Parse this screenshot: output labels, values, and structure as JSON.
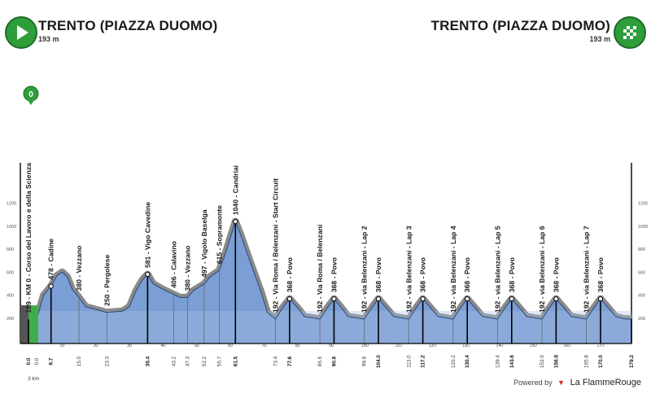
{
  "header": {
    "start_name": "TRENTO (PIAZZA DUOMO)",
    "start_alt": "193 m",
    "finish_name": "TRENTO (PIAZZA DUOMO)",
    "finish_alt": "193 m"
  },
  "colors": {
    "start_badge": "#2e9e3b",
    "finish_badge": "#2e9e3b",
    "profile_fill": "#7b9fd4",
    "climb_band": "#8a8a8a"
  },
  "icons": {
    "start": "play-icon",
    "finish": "checkered-flag-icon",
    "km0_marker": "km-zero-pin-icon"
  },
  "km0_marker_text": "0",
  "scale_note": "3 km",
  "footer": {
    "powered": "Powered by",
    "brand": "La FlammeRouge"
  },
  "chart_data": {
    "type": "area",
    "y_ticks": [
      "200",
      "400",
      "600",
      "800",
      "1000",
      "1200"
    ],
    "x_ticks": [
      "10",
      "20",
      "30",
      "40",
      "50",
      "60",
      "70",
      "80",
      "90",
      "100",
      "110",
      "120",
      "130",
      "140",
      "150",
      "160",
      "170"
    ],
    "x_range": [
      0,
      179.2
    ],
    "profile": [
      [
        0,
        189
      ],
      [
        2.5,
        200
      ],
      [
        4.5,
        400
      ],
      [
        6.7,
        478
      ],
      [
        8.5,
        570
      ],
      [
        10,
        600
      ],
      [
        11.5,
        560
      ],
      [
        13,
        450
      ],
      [
        15,
        380
      ],
      [
        17,
        300
      ],
      [
        23.3,
        250
      ],
      [
        28,
        262
      ],
      [
        30,
        300
      ],
      [
        32,
        440
      ],
      [
        34,
        540
      ],
      [
        35.4,
        581
      ],
      [
        37,
        500
      ],
      [
        40,
        450
      ],
      [
        43.2,
        406
      ],
      [
        45,
        380
      ],
      [
        47.3,
        380
      ],
      [
        49,
        440
      ],
      [
        52.2,
        497
      ],
      [
        54,
        560
      ],
      [
        56.7,
        615
      ],
      [
        58.5,
        760
      ],
      [
        60.5,
        950
      ],
      [
        61.5,
        1040
      ],
      [
        63,
        930
      ],
      [
        66,
        680
      ],
      [
        69,
        440
      ],
      [
        71,
        250
      ],
      [
        73.4,
        192
      ],
      [
        75.5,
        290
      ],
      [
        77.6,
        368
      ],
      [
        80,
        290
      ],
      [
        82,
        215
      ],
      [
        86.6,
        192
      ],
      [
        88.8,
        290
      ],
      [
        90.8,
        368
      ],
      [
        93,
        290
      ],
      [
        95,
        215
      ],
      [
        99.8,
        192
      ],
      [
        102,
        290
      ],
      [
        104.0,
        368
      ],
      [
        106.3,
        290
      ],
      [
        108.5,
        215
      ],
      [
        113.0,
        192
      ],
      [
        115.2,
        290
      ],
      [
        117.2,
        368
      ],
      [
        119.5,
        290
      ],
      [
        121.7,
        215
      ],
      [
        126.2,
        192
      ],
      [
        128.4,
        290
      ],
      [
        130.4,
        368
      ],
      [
        132.7,
        290
      ],
      [
        134.9,
        215
      ],
      [
        139.4,
        192
      ],
      [
        141.6,
        290
      ],
      [
        143.6,
        368
      ],
      [
        145.9,
        290
      ],
      [
        148.1,
        215
      ],
      [
        152.6,
        192
      ],
      [
        154.8,
        290
      ],
      [
        156.8,
        368
      ],
      [
        159.1,
        290
      ],
      [
        161.3,
        215
      ],
      [
        165.8,
        192
      ],
      [
        168,
        290
      ],
      [
        170.0,
        368
      ],
      [
        172.3,
        290
      ],
      [
        174.5,
        215
      ],
      [
        177,
        195
      ],
      [
        179.2,
        193
      ]
    ],
    "waypoints": [
      {
        "km": 0.0,
        "km_label": "0.0",
        "label": "189 - KM 0 - Corso del Lavoro e della Scienza",
        "bold": true
      },
      {
        "km": 6.7,
        "km_label": "6.7",
        "label": "478 - Cadine",
        "bold": true
      },
      {
        "km": 15.0,
        "km_label": "15.0",
        "label": "380 - Vezzano",
        "bold": false
      },
      {
        "km": 23.3,
        "km_label": "23.3",
        "label": "250 - Pergolese",
        "bold": false
      },
      {
        "km": 35.4,
        "km_label": "35.4",
        "label": "581 - Vigo Cavedine",
        "bold": true
      },
      {
        "km": 43.2,
        "km_label": "43.2",
        "label": "406 - Calavino",
        "bold": false
      },
      {
        "km": 47.3,
        "km_label": "47.3",
        "label": "380 - Vezzano",
        "bold": false
      },
      {
        "km": 52.2,
        "km_label": "52.2",
        "label": "497 - Vigolo Baselga",
        "bold": false
      },
      {
        "km": 56.7,
        "km_label": "56.7",
        "label": "615 - Sopramonte",
        "bold": false
      },
      {
        "km": 61.5,
        "km_label": "61.5",
        "label": "1040 - Candriai",
        "bold": true
      },
      {
        "km": 73.4,
        "km_label": "73.4",
        "label": "192 - Via Roma / Belenzani - Start Circuit",
        "bold": false
      },
      {
        "km": 77.6,
        "km_label": "77.6",
        "label": "368 - Povo",
        "bold": true
      },
      {
        "km": 86.6,
        "km_label": "86.6",
        "label": "192 - Via Roma / Belenzani",
        "bold": false
      },
      {
        "km": 90.8,
        "km_label": "90.8",
        "label": "368 - Povo",
        "bold": true
      },
      {
        "km": 99.8,
        "km_label": "99.8",
        "label": "192 - via Belenzani - Lap 2",
        "bold": false
      },
      {
        "km": 104.0,
        "km_label": "104.0",
        "label": "368 - Povo",
        "bold": true
      },
      {
        "km": 113.0,
        "km_label": "113.0",
        "label": "192 - via Belenzani - Lap 3",
        "bold": false
      },
      {
        "km": 117.2,
        "km_label": "117.2",
        "label": "368 - Povo",
        "bold": true
      },
      {
        "km": 126.2,
        "km_label": "126.2",
        "label": "192 - via Belenzani - Lap 4",
        "bold": false
      },
      {
        "km": 130.4,
        "km_label": "130.4",
        "label": "368 - Povo",
        "bold": true
      },
      {
        "km": 139.4,
        "km_label": "139.4",
        "label": "192 - via Belenzani - Lap 5",
        "bold": false
      },
      {
        "km": 143.6,
        "km_label": "143.6",
        "label": "368 - Povo",
        "bold": true
      },
      {
        "km": 152.6,
        "km_label": "152.6",
        "label": "192 - via Belenzani - Lap 6",
        "bold": false
      },
      {
        "km": 156.8,
        "km_label": "156.8",
        "label": "368 - Povo",
        "bold": true
      },
      {
        "km": 165.8,
        "km_label": "165.8",
        "label": "192 - via Belenzani - Lap 7",
        "bold": false
      },
      {
        "km": 170.0,
        "km_label": "170.0",
        "label": "368 - Povo",
        "bold": true
      },
      {
        "km": 179.2,
        "km_label": "179.2",
        "label": "",
        "bold": true
      }
    ]
  }
}
